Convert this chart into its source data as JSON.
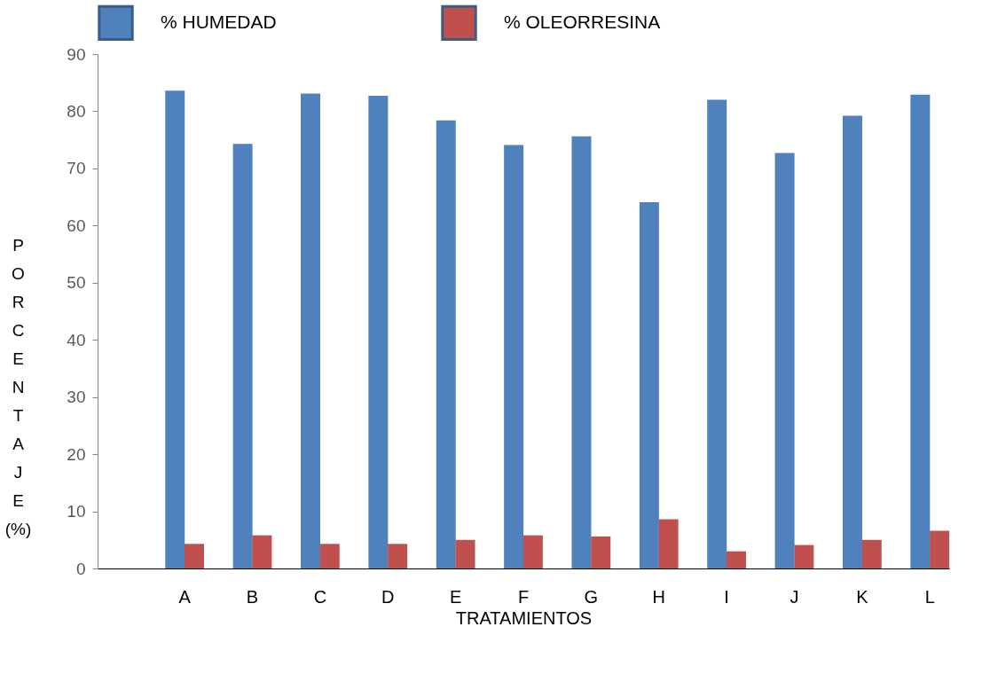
{
  "chart_data": {
    "type": "bar",
    "xlabel": "TRATAMIENTOS",
    "ylabel": "PORCENTAJE (%)",
    "categories": [
      null,
      "A",
      "B",
      "C",
      "D",
      "E",
      "F",
      "G",
      "H",
      "I",
      "J",
      "K",
      "L"
    ],
    "series": [
      {
        "name": "% HUMEDAD",
        "color": "#4f81bd",
        "values": [
          null,
          83.6,
          74.3,
          83.1,
          82.7,
          78.4,
          74.1,
          75.6,
          64.1,
          82,
          72.7,
          79.2,
          82.9
        ]
      },
      {
        "name": "% OLEORRESINA",
        "color": "#c0504d",
        "values": [
          null,
          4.3,
          5.8,
          4.3,
          4.3,
          5,
          5.8,
          5.6,
          8.6,
          3,
          4.1,
          5,
          6.6
        ]
      }
    ],
    "ylim": [
      0,
      90
    ],
    "yticks": [
      0,
      10,
      20,
      30,
      40,
      50,
      60,
      70,
      80,
      90
    ],
    "grid": false,
    "legend": "top"
  }
}
